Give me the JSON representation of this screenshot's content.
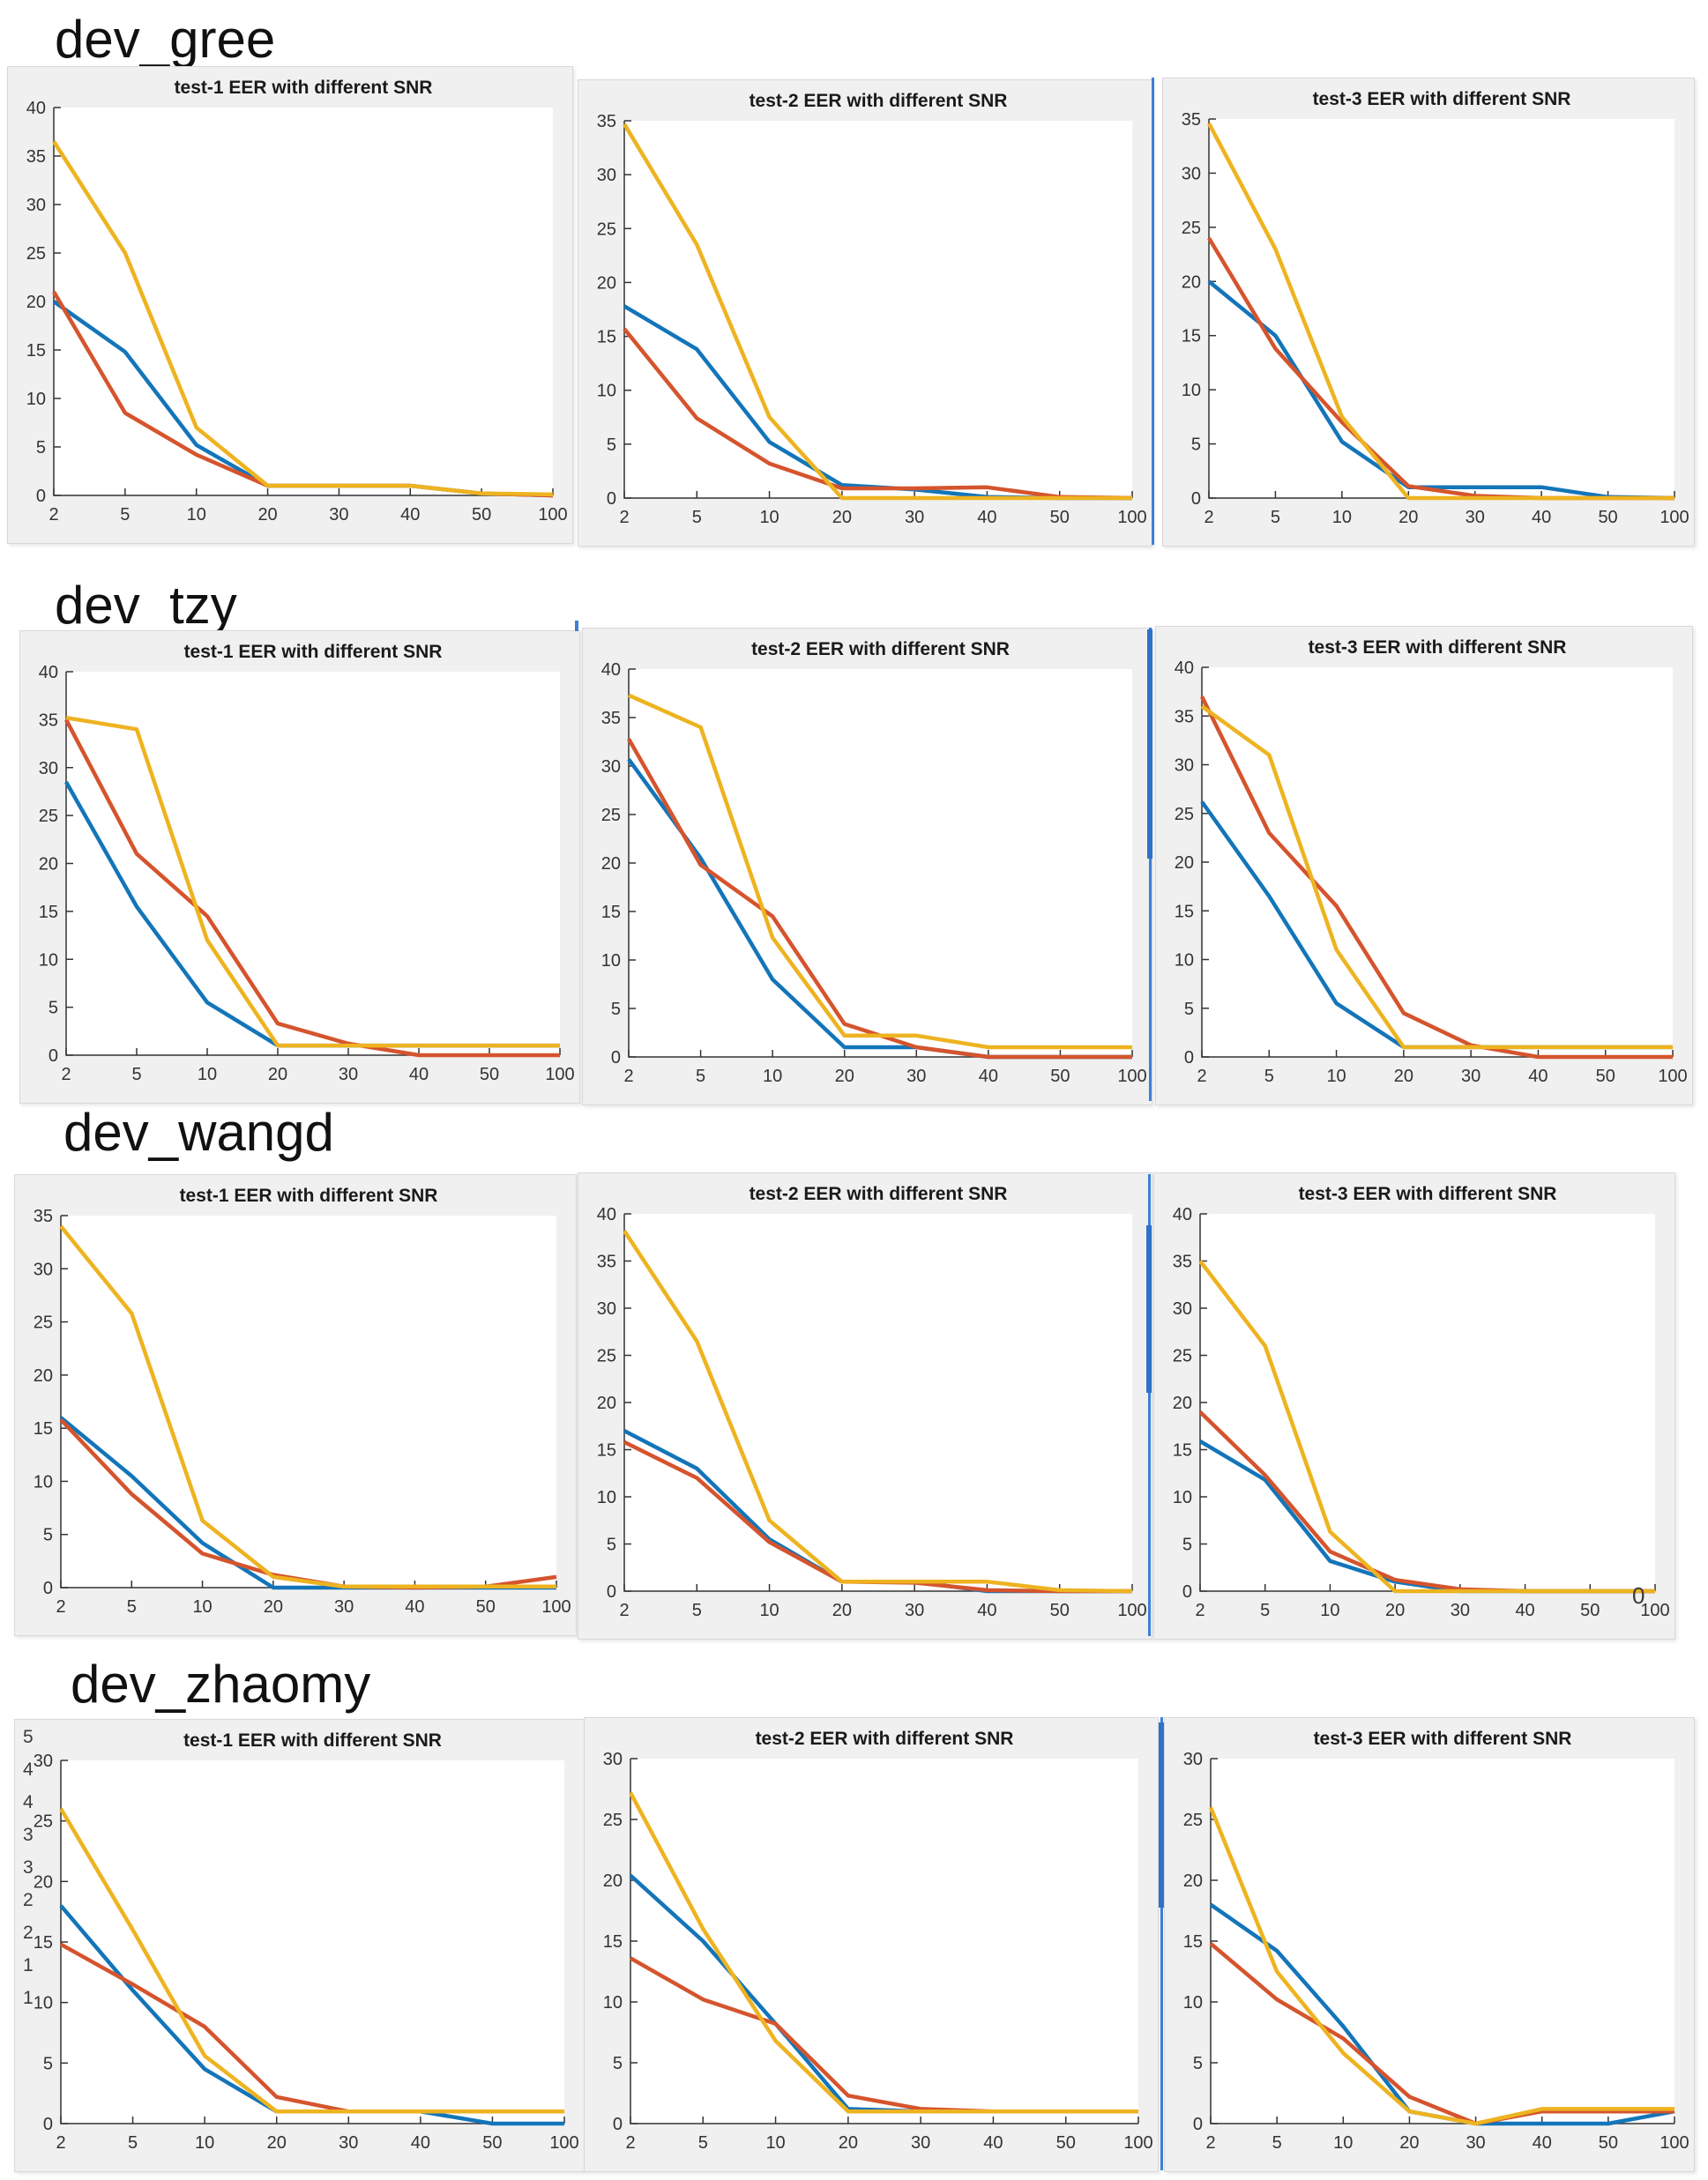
{
  "colors": {
    "blue": "#1375b9",
    "red": "#d5542d",
    "yellow": "#eeb320",
    "panel_bg": "#f0f0f0",
    "axis": "#333333",
    "accent_blue": "#3d7fd6"
  },
  "rows": [
    {
      "label": "dev_gree",
      "chart_indexes": [
        0,
        1,
        2
      ]
    },
    {
      "label": "dev  tzy",
      "chart_indexes": [
        3,
        4,
        5
      ]
    },
    {
      "label": "dev_wangd",
      "chart_indexes": [
        6,
        7,
        8
      ]
    },
    {
      "label": "dev_zhaomy",
      "chart_indexes": [
        9,
        10,
        11
      ]
    }
  ],
  "stray": {
    "zero_label": "0",
    "clipped_axis_digits": [
      "5",
      "4",
      "4",
      "3",
      "3",
      "2",
      "2",
      "1",
      "1"
    ]
  },
  "chart_data": [
    {
      "row": "dev_gree",
      "title": "test-1 EER with different SNR",
      "type": "line",
      "categories": [
        2,
        5,
        10,
        20,
        30,
        40,
        50,
        100
      ],
      "ylim": [
        0,
        40
      ],
      "ytick_step": 5,
      "grid": false,
      "legend": "none",
      "series": [
        {
          "name": "blue",
          "color_key": "blue",
          "values": [
            20,
            14.8,
            5.2,
            1,
            1,
            1,
            0.2,
            0
          ]
        },
        {
          "name": "red",
          "color_key": "red",
          "values": [
            21,
            8.5,
            4.2,
            1,
            1,
            1,
            0.2,
            0
          ]
        },
        {
          "name": "yellow",
          "color_key": "yellow",
          "values": [
            36.5,
            25,
            7,
            1,
            1,
            1,
            0.2,
            0.1
          ]
        }
      ]
    },
    {
      "row": "dev_gree",
      "title": "test-2 EER with different SNR",
      "type": "line",
      "categories": [
        2,
        5,
        10,
        20,
        30,
        40,
        50,
        100
      ],
      "ylim": [
        0,
        35
      ],
      "ytick_step": 5,
      "grid": false,
      "legend": "none",
      "series": [
        {
          "name": "blue",
          "color_key": "blue",
          "values": [
            17.8,
            13.8,
            5.2,
            1.2,
            0.8,
            0.1,
            0,
            0
          ]
        },
        {
          "name": "red",
          "color_key": "red",
          "values": [
            15.7,
            7.4,
            3.2,
            0.9,
            0.9,
            1,
            0.1,
            0
          ]
        },
        {
          "name": "yellow",
          "color_key": "yellow",
          "values": [
            34.7,
            23.5,
            7.5,
            0,
            0,
            0,
            0,
            0
          ]
        }
      ]
    },
    {
      "row": "dev_gree",
      "title": "test-3 EER with different SNR",
      "type": "line",
      "categories": [
        2,
        5,
        10,
        20,
        30,
        40,
        50,
        100
      ],
      "ylim": [
        0,
        35
      ],
      "ytick_step": 5,
      "grid": false,
      "legend": "none",
      "series": [
        {
          "name": "blue",
          "color_key": "blue",
          "values": [
            20,
            15,
            5.2,
            1,
            1,
            1,
            0.1,
            0
          ]
        },
        {
          "name": "red",
          "color_key": "red",
          "values": [
            24,
            13.8,
            7,
            1.1,
            0.2,
            0,
            0,
            0
          ]
        },
        {
          "name": "yellow",
          "color_key": "yellow",
          "values": [
            34.6,
            23,
            7.5,
            0,
            0,
            0,
            0,
            0
          ]
        }
      ]
    },
    {
      "row": "dev  tzy",
      "title": "test-1 EER with different SNR",
      "type": "line",
      "categories": [
        2,
        5,
        10,
        20,
        30,
        40,
        50,
        100
      ],
      "ylim": [
        0,
        40
      ],
      "ytick_step": 5,
      "grid": false,
      "legend": "none",
      "series": [
        {
          "name": "blue",
          "color_key": "blue",
          "values": [
            28.5,
            15.5,
            5.5,
            1,
            1,
            1,
            1,
            1
          ]
        },
        {
          "name": "red",
          "color_key": "red",
          "values": [
            35,
            21,
            14.5,
            3.3,
            1.2,
            0,
            0,
            0
          ]
        },
        {
          "name": "yellow",
          "color_key": "yellow",
          "values": [
            35.2,
            34,
            12,
            1,
            1,
            1,
            1,
            1
          ]
        }
      ]
    },
    {
      "row": "dev  tzy",
      "title": "test-2 EER with different SNR",
      "type": "line",
      "categories": [
        2,
        5,
        10,
        20,
        30,
        40,
        50,
        100
      ],
      "ylim": [
        0,
        40
      ],
      "ytick_step": 5,
      "grid": false,
      "legend": "none",
      "series": [
        {
          "name": "blue",
          "color_key": "blue",
          "values": [
            30.7,
            20.5,
            8,
            1,
            1,
            0,
            0,
            0
          ]
        },
        {
          "name": "red",
          "color_key": "red",
          "values": [
            32.8,
            19.8,
            14.5,
            3.4,
            1,
            0,
            0,
            0
          ]
        },
        {
          "name": "yellow",
          "color_key": "yellow",
          "values": [
            37.3,
            34,
            12.3,
            2.2,
            2.2,
            1,
            1,
            1
          ]
        }
      ]
    },
    {
      "row": "dev  tzy",
      "title": "test-3 EER with different SNR",
      "type": "line",
      "categories": [
        2,
        5,
        10,
        20,
        30,
        40,
        50,
        100
      ],
      "ylim": [
        0,
        40
      ],
      "ytick_step": 5,
      "grid": false,
      "legend": "none",
      "series": [
        {
          "name": "blue",
          "color_key": "blue",
          "values": [
            26.2,
            16.5,
            5.5,
            1,
            1,
            1,
            1,
            1
          ]
        },
        {
          "name": "red",
          "color_key": "red",
          "values": [
            37,
            23,
            15.5,
            4.5,
            1.2,
            0,
            0,
            0
          ]
        },
        {
          "name": "yellow",
          "color_key": "yellow",
          "values": [
            36,
            31,
            11,
            1,
            1,
            1,
            1,
            1
          ]
        }
      ]
    },
    {
      "row": "dev_wangd",
      "title": "test-1 EER with different SNR",
      "type": "line",
      "categories": [
        2,
        5,
        10,
        20,
        30,
        40,
        50,
        100
      ],
      "ylim": [
        0,
        35
      ],
      "ytick_step": 5,
      "grid": false,
      "legend": "none",
      "series": [
        {
          "name": "blue",
          "color_key": "blue",
          "values": [
            16,
            10.5,
            4.2,
            0,
            0,
            0,
            0,
            0
          ]
        },
        {
          "name": "red",
          "color_key": "red",
          "values": [
            15.8,
            8.8,
            3.2,
            1.2,
            0.1,
            0,
            0.1,
            1
          ]
        },
        {
          "name": "yellow",
          "color_key": "yellow",
          "values": [
            34,
            25.8,
            6.3,
            1,
            0.1,
            0.1,
            0.1,
            0.1
          ]
        }
      ]
    },
    {
      "row": "dev_wangd",
      "title": "test-2 EER with different SNR",
      "type": "line",
      "categories": [
        2,
        5,
        10,
        20,
        30,
        40,
        50,
        100
      ],
      "ylim": [
        0,
        40
      ],
      "ytick_step": 5,
      "grid": false,
      "legend": "none",
      "series": [
        {
          "name": "blue",
          "color_key": "blue",
          "values": [
            17,
            13,
            5.5,
            1,
            1,
            0,
            0,
            0
          ]
        },
        {
          "name": "red",
          "color_key": "red",
          "values": [
            15.8,
            12,
            5.2,
            1,
            0.9,
            0.1,
            0,
            0
          ]
        },
        {
          "name": "yellow",
          "color_key": "yellow",
          "values": [
            38.2,
            26.5,
            7.5,
            1,
            1,
            1,
            0.1,
            0
          ]
        }
      ]
    },
    {
      "row": "dev_wangd",
      "title": "test-3 EER with different SNR",
      "type": "line",
      "categories": [
        2,
        5,
        10,
        20,
        30,
        40,
        50,
        100
      ],
      "ylim": [
        0,
        40
      ],
      "ytick_step": 5,
      "grid": false,
      "legend": "none",
      "series": [
        {
          "name": "blue",
          "color_key": "blue",
          "values": [
            15.9,
            11.8,
            3.2,
            1,
            0,
            0,
            0,
            0
          ]
        },
        {
          "name": "red",
          "color_key": "red",
          "values": [
            19,
            12.3,
            4.2,
            1.2,
            0.2,
            0,
            0,
            0
          ]
        },
        {
          "name": "yellow",
          "color_key": "yellow",
          "values": [
            35,
            26,
            6.3,
            0,
            0,
            0,
            0,
            0
          ]
        }
      ]
    },
    {
      "row": "dev_zhaomy",
      "title": "test-1 EER with different SNR",
      "type": "line",
      "categories": [
        2,
        5,
        10,
        20,
        30,
        40,
        50,
        100
      ],
      "ylim": [
        0,
        30
      ],
      "ytick_step": 5,
      "grid": false,
      "legend": "none",
      "series": [
        {
          "name": "blue",
          "color_key": "blue",
          "values": [
            18,
            11,
            4.5,
            1,
            1,
            1,
            0,
            0
          ]
        },
        {
          "name": "red",
          "color_key": "red",
          "values": [
            14.8,
            11.5,
            8,
            2.2,
            1,
            1,
            1,
            1
          ]
        },
        {
          "name": "yellow",
          "color_key": "yellow",
          "values": [
            26,
            16,
            5.6,
            1,
            1,
            1,
            1,
            1
          ]
        }
      ]
    },
    {
      "row": "dev_zhaomy",
      "title": "test-2 EER with different SNR",
      "type": "line",
      "categories": [
        2,
        5,
        10,
        20,
        30,
        40,
        50,
        100
      ],
      "ylim": [
        0,
        30
      ],
      "ytick_step": 5,
      "grid": false,
      "legend": "none",
      "series": [
        {
          "name": "blue",
          "color_key": "blue",
          "values": [
            20.4,
            15,
            8.2,
            1.2,
            1,
            1,
            1,
            1
          ]
        },
        {
          "name": "red",
          "color_key": "red",
          "values": [
            13.6,
            10.2,
            8.2,
            2.3,
            1.2,
            1,
            1,
            1
          ]
        },
        {
          "name": "yellow",
          "color_key": "yellow",
          "values": [
            27.2,
            16,
            6.8,
            1,
            1,
            1,
            1,
            1
          ]
        }
      ]
    },
    {
      "row": "dev_zhaomy",
      "title": "test-3 EER with different SNR",
      "type": "line",
      "categories": [
        2,
        5,
        10,
        20,
        30,
        40,
        50,
        100
      ],
      "ylim": [
        0,
        30
      ],
      "ytick_step": 5,
      "grid": false,
      "legend": "none",
      "series": [
        {
          "name": "blue",
          "color_key": "blue",
          "values": [
            18,
            14.2,
            8,
            1,
            0,
            0,
            0,
            1
          ]
        },
        {
          "name": "red",
          "color_key": "red",
          "values": [
            14.8,
            10.2,
            7,
            2.2,
            0,
            1,
            1,
            1
          ]
        },
        {
          "name": "yellow",
          "color_key": "yellow",
          "values": [
            26,
            12.5,
            5.8,
            1,
            0,
            1.2,
            1.2,
            1.2
          ]
        }
      ]
    }
  ]
}
